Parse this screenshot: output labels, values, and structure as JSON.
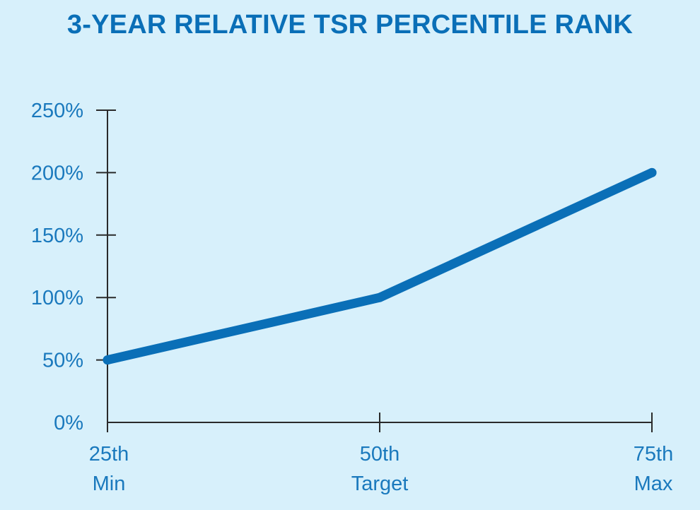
{
  "colors": {
    "background": "#d7f0fb",
    "accent": "#0a6fb7",
    "line": "#0a6fb7",
    "axis": "#2a2a2a",
    "labels": "#1a79bd"
  },
  "chart_data": {
    "type": "line",
    "title": "3-YEAR RELATIVE TSR PERCENTILE RANK",
    "xlabel": "",
    "ylabel": "",
    "categories": [
      [
        "25th",
        "Min"
      ],
      [
        "50th",
        "Target"
      ],
      [
        "75th",
        "Max"
      ]
    ],
    "x": [
      25,
      50,
      75
    ],
    "xlim": [
      25,
      75
    ],
    "ylim": [
      0,
      250
    ],
    "yticks": [
      0,
      50,
      100,
      150,
      200,
      250
    ],
    "ytick_labels": [
      "0%",
      "50%",
      "100%",
      "150%",
      "200%",
      "250%"
    ],
    "grid": false,
    "legend": "none",
    "series": [
      {
        "values": [
          50,
          100,
          200
        ]
      }
    ]
  }
}
